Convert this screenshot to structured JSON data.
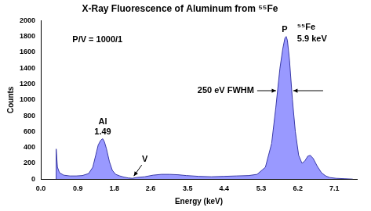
{
  "chart_data": {
    "type": "area",
    "title": "X-Ray Fluorescence of Aluminum from ⁵⁵Fe",
    "x_label": "Energy (keV)",
    "y_label": "Counts",
    "color": "#9999ff",
    "grid": false,
    "x": [
      0.365,
      0.37,
      0.4,
      0.45,
      0.55,
      0.7,
      0.85,
      1.0,
      1.15,
      1.25,
      1.32,
      1.38,
      1.44,
      1.49,
      1.53,
      1.58,
      1.65,
      1.72,
      1.8,
      1.9,
      2.0,
      2.1,
      2.2,
      2.3,
      2.5,
      2.7,
      2.9,
      3.1,
      3.3,
      3.5,
      3.8,
      4.1,
      4.4,
      4.7,
      5.0,
      5.2,
      5.4,
      5.55,
      5.65,
      5.75,
      5.82,
      5.87,
      5.9,
      5.93,
      5.98,
      6.05,
      6.12,
      6.2,
      6.28,
      6.35,
      6.42,
      6.48,
      6.55,
      6.65,
      6.75,
      6.85,
      6.95,
      7.1,
      7.3,
      7.5
    ],
    "values": [
      0,
      380,
      150,
      80,
      50,
      40,
      40,
      45,
      70,
      150,
      300,
      430,
      490,
      510,
      470,
      380,
      220,
      110,
      60,
      40,
      25,
      15,
      10,
      20,
      30,
      50,
      60,
      60,
      55,
      45,
      35,
      30,
      35,
      40,
      45,
      60,
      150,
      450,
      900,
      1400,
      1650,
      1780,
      1800,
      1750,
      1500,
      1000,
      600,
      300,
      200,
      230,
      290,
      300,
      260,
      160,
      80,
      40,
      20,
      10,
      5,
      0
    ],
    "xlim": [
      0,
      7.6
    ],
    "xticks": [
      {
        "value": 0,
        "label": "0.0"
      },
      {
        "value": 0.89,
        "label": "0.9"
      },
      {
        "value": 1.77,
        "label": "1.8"
      },
      {
        "value": 2.64,
        "label": "2.6"
      },
      {
        "value": 3.53,
        "label": "3.5"
      },
      {
        "value": 4.41,
        "label": "4.4"
      },
      {
        "value": 5.3,
        "label": "5.3"
      },
      {
        "value": 6.18,
        "label": "6.2"
      },
      {
        "value": 7.06,
        "label": "7.1"
      }
    ],
    "ylim": [
      0,
      2000
    ],
    "yticks": [
      0,
      200,
      400,
      600,
      800,
      1000,
      1200,
      1400,
      1600,
      1800,
      2000
    ],
    "annotations": {
      "peak_valley": "P/V = 1000/1",
      "al_line": "Al",
      "al_energy": "1.49",
      "valley": "V",
      "peak": "P",
      "source": "⁵⁵Fe",
      "source_energy": "5.9 keV",
      "resolution": "250 eV FWHM"
    }
  }
}
